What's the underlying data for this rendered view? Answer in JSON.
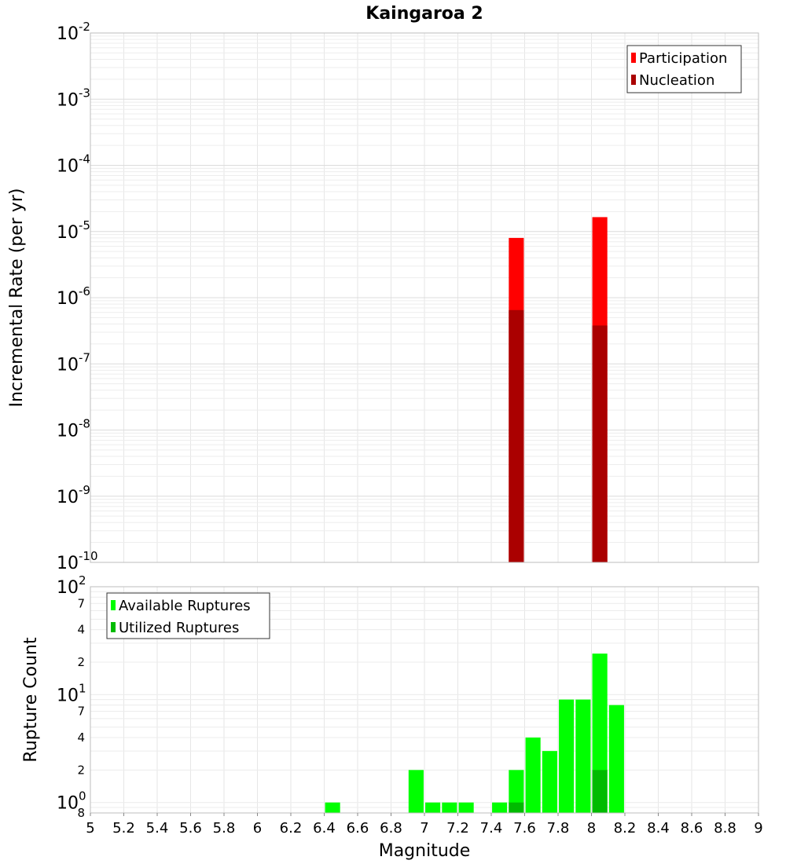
{
  "chart_data": {
    "title": "Kaingaroa 2",
    "xlabel": "Magnitude",
    "x_ticks": [
      "5",
      "5.2",
      "5.4",
      "5.6",
      "5.8",
      "6",
      "6.2",
      "6.4",
      "6.6",
      "6.8",
      "7",
      "7.2",
      "7.4",
      "7.6",
      "7.8",
      "8",
      "8.2",
      "8.4",
      "8.6",
      "8.8",
      "9"
    ],
    "xlim": [
      5,
      9
    ],
    "top_panel": {
      "type": "bar",
      "ylabel": "Incremental Rate (per yr)",
      "yscale": "log",
      "ylim": [
        1e-10,
        0.01
      ],
      "y_ticks": [
        {
          "value": 0.01,
          "base": "10",
          "exp": "-2"
        },
        {
          "value": 0.001,
          "base": "10",
          "exp": "-3"
        },
        {
          "value": 0.0001,
          "base": "10",
          "exp": "-4"
        },
        {
          "value": 1e-05,
          "base": "10",
          "exp": "-5"
        },
        {
          "value": 1e-06,
          "base": "10",
          "exp": "-6"
        },
        {
          "value": 1e-07,
          "base": "10",
          "exp": "-7"
        },
        {
          "value": 1e-08,
          "base": "10",
          "exp": "-8"
        },
        {
          "value": 1e-09,
          "base": "10",
          "exp": "-9"
        },
        {
          "value": 1e-10,
          "base": "10",
          "exp": "-10"
        }
      ],
      "legend_position": "top-right",
      "series": [
        {
          "name": "Participation",
          "color": "#ff0000",
          "x": [
            7.55,
            8.05
          ],
          "values": [
            8e-06,
            1.65e-05
          ]
        },
        {
          "name": "Nucleation",
          "color": "#aa0000",
          "x": [
            7.55,
            8.05
          ],
          "values": [
            6.5e-07,
            3.8e-07
          ]
        }
      ]
    },
    "bottom_panel": {
      "type": "bar",
      "ylabel": "Rupture Count",
      "yscale": "log",
      "ylim": [
        0.8,
        100
      ],
      "y_major_ticks": [
        {
          "value": 100,
          "base": "10",
          "exp": "2"
        },
        {
          "value": 10,
          "base": "10",
          "exp": "1"
        },
        {
          "value": 1,
          "base": "10",
          "exp": "0"
        }
      ],
      "y_minor_ticks": [
        {
          "value": 70,
          "label": "7"
        },
        {
          "value": 40,
          "label": "4"
        },
        {
          "value": 20,
          "label": "2"
        },
        {
          "value": 7,
          "label": "7"
        },
        {
          "value": 4,
          "label": "4"
        },
        {
          "value": 2,
          "label": "2"
        },
        {
          "value": 0.8,
          "label": "8"
        }
      ],
      "legend_position": "top-left",
      "series": [
        {
          "name": "Available Ruptures",
          "color": "#00ff00",
          "x": [
            6.45,
            6.95,
            7.05,
            7.15,
            7.25,
            7.45,
            7.55,
            7.65,
            7.75,
            7.85,
            7.95,
            8.05,
            8.15
          ],
          "values": [
            1,
            2,
            1,
            1,
            1,
            1,
            2,
            4,
            3,
            9,
            9,
            24,
            8
          ]
        },
        {
          "name": "Utilized Ruptures",
          "color": "#00bb00",
          "x": [
            7.55,
            8.05
          ],
          "values": [
            1,
            2
          ]
        }
      ]
    }
  }
}
